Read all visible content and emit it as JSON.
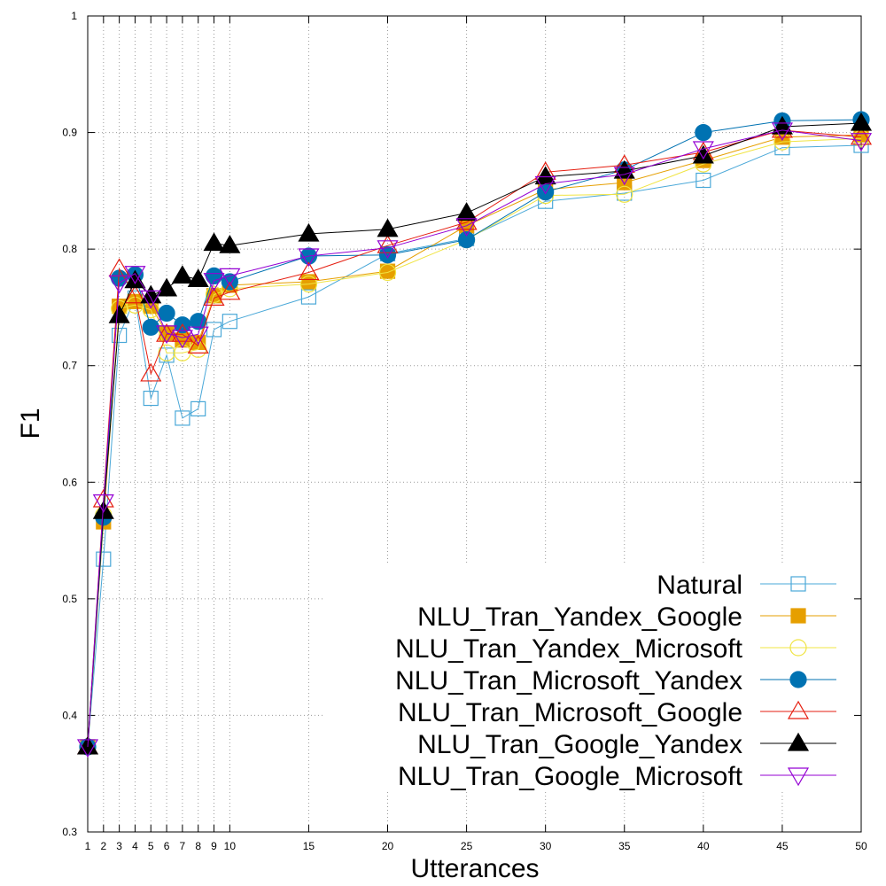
{
  "chart_data": {
    "type": "line",
    "title": "",
    "xlabel": "Utterances",
    "ylabel": "F1",
    "xlim": [
      1,
      50
    ],
    "ylim": [
      0.3,
      1.0
    ],
    "x_ticks": [
      1,
      2,
      3,
      4,
      5,
      6,
      7,
      8,
      9,
      10,
      15,
      20,
      25,
      30,
      35,
      40,
      45,
      50
    ],
    "y_ticks": [
      0.3,
      0.4,
      0.5,
      0.6,
      0.7,
      0.8,
      0.9,
      1
    ],
    "y_tick_labels": [
      "0.3",
      "0.4",
      "0.5",
      "0.6",
      "0.7",
      "0.8",
      "0.9",
      "1"
    ],
    "grid": true,
    "legend_position": "bottom-right",
    "x": [
      1,
      2,
      3,
      4,
      5,
      6,
      7,
      8,
      9,
      10,
      15,
      20,
      25,
      30,
      35,
      40,
      45,
      50
    ],
    "series": [
      {
        "name": "Natural",
        "color": "#4aa8d8",
        "marker": "square-open",
        "values": [
          0.373,
          0.534,
          0.726,
          0.758,
          0.672,
          0.709,
          0.655,
          0.663,
          0.731,
          0.738,
          0.759,
          0.796,
          0.809,
          0.841,
          0.848,
          0.859,
          0.887,
          0.889
        ]
      },
      {
        "name": "NLU_Tran_Yandex_Google",
        "color": "#e69f00",
        "marker": "square-filled",
        "values": [
          0.373,
          0.566,
          0.751,
          0.755,
          0.751,
          0.728,
          0.722,
          0.72,
          0.76,
          0.769,
          0.772,
          0.781,
          0.82,
          0.851,
          0.857,
          0.876,
          0.896,
          0.898
        ]
      },
      {
        "name": "NLU_Tran_Yandex_Microsoft",
        "color": "#f0e442",
        "marker": "circle-open",
        "values": [
          0.373,
          0.572,
          0.749,
          0.752,
          0.748,
          0.711,
          0.711,
          0.714,
          0.761,
          0.766,
          0.77,
          0.78,
          0.808,
          0.846,
          0.847,
          0.873,
          0.892,
          0.895
        ]
      },
      {
        "name": "NLU_Tran_Microsoft_Yandex",
        "color": "#0072b2",
        "marker": "circle-filled",
        "values": [
          0.373,
          0.57,
          0.775,
          0.778,
          0.733,
          0.745,
          0.735,
          0.738,
          0.777,
          0.772,
          0.794,
          0.795,
          0.808,
          0.849,
          0.868,
          0.9,
          0.91,
          0.911
        ]
      },
      {
        "name": "NLU_Tran_Microsoft_Google",
        "color": "#e51e10",
        "marker": "triangle-up-open",
        "values": [
          0.373,
          0.585,
          0.783,
          0.76,
          0.693,
          0.727,
          0.727,
          0.717,
          0.758,
          0.763,
          0.78,
          0.803,
          0.823,
          0.866,
          0.872,
          0.883,
          0.902,
          0.896
        ]
      },
      {
        "name": "NLU_Tran_Google_Yandex",
        "color": "#000000",
        "marker": "triangle-up-filled",
        "values": [
          0.373,
          0.575,
          0.743,
          0.773,
          0.76,
          0.766,
          0.777,
          0.774,
          0.805,
          0.803,
          0.813,
          0.817,
          0.831,
          0.862,
          0.867,
          0.88,
          0.905,
          0.908
        ]
      },
      {
        "name": "NLU_Tran_Google_Microsoft",
        "color": "#9400d3",
        "marker": "triangle-down-open",
        "values": [
          0.373,
          0.583,
          0.771,
          0.779,
          0.758,
          0.728,
          0.724,
          0.727,
          0.773,
          0.777,
          0.794,
          0.801,
          0.82,
          0.856,
          0.864,
          0.886,
          0.902,
          0.893
        ]
      }
    ]
  }
}
